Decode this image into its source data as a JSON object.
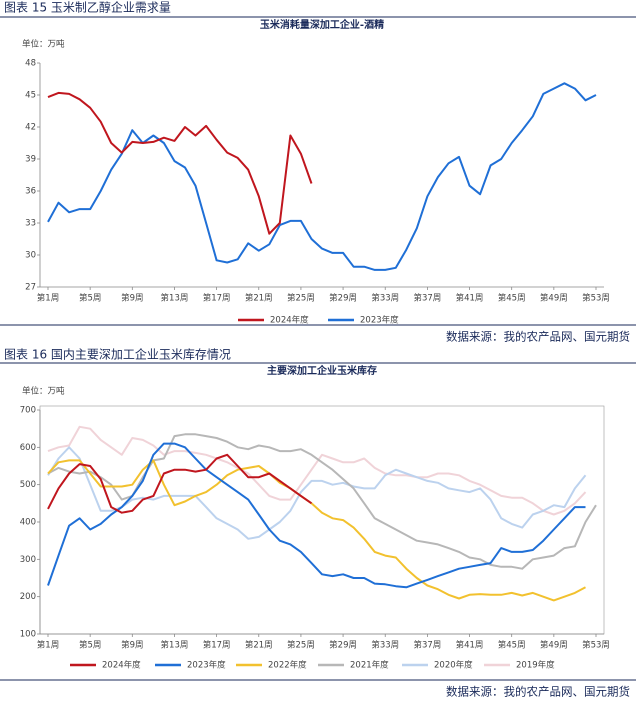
{
  "captions": [
    "图表 15  玉米制乙醇企业需求量",
    "图表 16  国内主要深加工企业玉米库存情况"
  ],
  "sources": [
    "数据来源：我的农产品网、国元期货",
    "数据来源：我的农产品网、国元期货"
  ],
  "chart_data": [
    {
      "type": "line",
      "title": "玉米消耗量深加工企业-酒精",
      "ylabel": "单位：万吨",
      "x": [
        1,
        2,
        3,
        4,
        5,
        6,
        7,
        8,
        9,
        10,
        11,
        12,
        13,
        14,
        15,
        16,
        17,
        18,
        19,
        20,
        21,
        22,
        23,
        24,
        25,
        26,
        27,
        28,
        29,
        30,
        31,
        32,
        33,
        34,
        35,
        36,
        37,
        38,
        39,
        40,
        41,
        42,
        43,
        44,
        45,
        46,
        47,
        48,
        49,
        50,
        51,
        52,
        53
      ],
      "xlim": [
        1,
        53
      ],
      "xticks": [
        {
          "value": 1,
          "label": "第1周"
        },
        {
          "value": 5,
          "label": "第5周"
        },
        {
          "value": 9,
          "label": "第9周"
        },
        {
          "value": 13,
          "label": "第13周"
        },
        {
          "value": 17,
          "label": "第17周"
        },
        {
          "value": 21,
          "label": "第21周"
        },
        {
          "value": 25,
          "label": "第25周"
        },
        {
          "value": 29,
          "label": "第29周"
        },
        {
          "value": 33,
          "label": "第33周"
        },
        {
          "value": 37,
          "label": "第37周"
        },
        {
          "value": 41,
          "label": "第41周"
        },
        {
          "value": 45,
          "label": "第45周"
        },
        {
          "value": 49,
          "label": "第49周"
        },
        {
          "value": 53,
          "label": "第53周"
        }
      ],
      "ylim": [
        27,
        48
      ],
      "yticks": [
        27,
        30,
        33,
        36,
        39,
        42,
        45,
        48
      ],
      "grid": false,
      "series": [
        {
          "name": "2024年度",
          "color": "#c0161e",
          "values": [
            44.8,
            45.2,
            45.1,
            44.6,
            43.8,
            42.5,
            40.5,
            39.6,
            40.6,
            40.5,
            40.6,
            41.0,
            40.7,
            42.0,
            41.2,
            42.1,
            40.8,
            39.6,
            39.1,
            38.0,
            35.5,
            32.0,
            33.0,
            41.2,
            39.5,
            36.7,
            null,
            null,
            null,
            null,
            null,
            null,
            null,
            null,
            null,
            null,
            null,
            null,
            null,
            null,
            null,
            null,
            null,
            null,
            null,
            null,
            null,
            null,
            null,
            null,
            null,
            null,
            null
          ]
        },
        {
          "name": "2023年度",
          "color": "#1f6fd6",
          "values": [
            33.1,
            34.9,
            34.0,
            34.3,
            34.3,
            36.0,
            38.0,
            39.5,
            41.7,
            40.5,
            41.2,
            40.5,
            38.8,
            38.2,
            36.5,
            33.0,
            29.5,
            29.3,
            29.6,
            31.1,
            30.4,
            31.0,
            32.8,
            33.2,
            33.2,
            31.5,
            30.6,
            30.2,
            30.2,
            28.9,
            28.9,
            28.6,
            28.6,
            28.8,
            30.5,
            32.5,
            35.5,
            37.3,
            38.6,
            39.2,
            36.5,
            35.7,
            38.4,
            39.0,
            40.5,
            41.7,
            43.0,
            45.1,
            45.6,
            46.1,
            45.6,
            44.5,
            45.0
          ]
        }
      ]
    },
    {
      "type": "line",
      "title": "主要深加工企业玉米库存",
      "ylabel": "单位：万吨",
      "x": [
        1,
        2,
        3,
        4,
        5,
        6,
        7,
        8,
        9,
        10,
        11,
        12,
        13,
        14,
        15,
        16,
        17,
        18,
        19,
        20,
        21,
        22,
        23,
        24,
        25,
        26,
        27,
        28,
        29,
        30,
        31,
        32,
        33,
        34,
        35,
        36,
        37,
        38,
        39,
        40,
        41,
        42,
        43,
        44,
        45,
        46,
        47,
        48,
        49,
        50,
        51,
        52,
        53
      ],
      "xlim": [
        1,
        53
      ],
      "xticks": [
        {
          "value": 1,
          "label": "第1周"
        },
        {
          "value": 5,
          "label": "第5周"
        },
        {
          "value": 9,
          "label": "第9周"
        },
        {
          "value": 13,
          "label": "第13周"
        },
        {
          "value": 17,
          "label": "第17周"
        },
        {
          "value": 21,
          "label": "第21周"
        },
        {
          "value": 25,
          "label": "第25周"
        },
        {
          "value": 29,
          "label": "第29周"
        },
        {
          "value": 33,
          "label": "第33周"
        },
        {
          "value": 37,
          "label": "第37周"
        },
        {
          "value": 41,
          "label": "第41周"
        },
        {
          "value": 45,
          "label": "第45周"
        },
        {
          "value": 49,
          "label": "第49周"
        },
        {
          "value": 53,
          "label": "第53周"
        }
      ],
      "ylim": [
        100,
        700
      ],
      "yticks": [
        100,
        200,
        300,
        400,
        500,
        600,
        700
      ],
      "grid": false,
      "series": [
        {
          "name": "2024年度",
          "color": "#c0161e",
          "values": [
            435,
            490,
            530,
            555,
            550,
            515,
            440,
            425,
            430,
            460,
            470,
            530,
            540,
            540,
            535,
            540,
            570,
            580,
            550,
            520,
            520,
            530,
            510,
            490,
            470,
            450,
            null,
            null,
            null,
            null,
            null,
            null,
            null,
            null,
            null,
            null,
            null,
            null,
            null,
            null,
            null,
            null,
            null,
            null,
            null,
            null,
            null,
            null,
            null,
            null,
            null,
            null,
            null
          ]
        },
        {
          "name": "2023年度",
          "color": "#1f6fd6",
          "values": [
            230,
            310,
            390,
            410,
            380,
            395,
            420,
            440,
            470,
            510,
            580,
            610,
            610,
            600,
            570,
            540,
            520,
            500,
            480,
            460,
            420,
            380,
            350,
            340,
            320,
            290,
            260,
            255,
            260,
            250,
            250,
            235,
            233,
            228,
            225,
            235,
            245,
            255,
            265,
            275,
            280,
            285,
            290,
            330,
            320,
            320,
            325,
            350,
            380,
            410,
            440,
            440,
            null
          ]
        },
        {
          "name": "2022年度",
          "color": "#f2c12e",
          "values": [
            530,
            560,
            565,
            565,
            530,
            495,
            495,
            495,
            500,
            540,
            565,
            500,
            445,
            455,
            470,
            480,
            500,
            525,
            540,
            545,
            550,
            530,
            505,
            490,
            470,
            450,
            425,
            410,
            405,
            385,
            355,
            320,
            310,
            305,
            275,
            250,
            230,
            220,
            205,
            195,
            205,
            207,
            205,
            205,
            210,
            203,
            210,
            200,
            190,
            200,
            210,
            225,
            null
          ]
        },
        {
          "name": "2021年度",
          "color": "#b7b7b7",
          "values": [
            530,
            545,
            535,
            530,
            535,
            520,
            500,
            460,
            470,
            520,
            565,
            570,
            630,
            635,
            635,
            630,
            625,
            615,
            600,
            595,
            605,
            600,
            590,
            590,
            595,
            580,
            560,
            540,
            515,
            490,
            450,
            410,
            395,
            380,
            365,
            350,
            345,
            340,
            330,
            320,
            305,
            300,
            285,
            280,
            280,
            275,
            300,
            305,
            310,
            330,
            335,
            400,
            445
          ]
        },
        {
          "name": "2020年度",
          "color": "#bcd2ee",
          "values": [
            525,
            570,
            600,
            570,
            500,
            430,
            430,
            440,
            460,
            465,
            460,
            470,
            470,
            470,
            470,
            440,
            410,
            395,
            380,
            355,
            360,
            380,
            400,
            430,
            480,
            510,
            510,
            500,
            505,
            495,
            490,
            490,
            525,
            540,
            530,
            520,
            510,
            505,
            490,
            485,
            480,
            490,
            460,
            410,
            395,
            385,
            420,
            430,
            445,
            440,
            490,
            525,
            null
          ]
        },
        {
          "name": "2019年度",
          "color": "#f0d3d8",
          "values": [
            590,
            600,
            605,
            655,
            650,
            620,
            600,
            580,
            625,
            620,
            605,
            580,
            590,
            590,
            585,
            580,
            570,
            560,
            545,
            530,
            500,
            470,
            460,
            460,
            500,
            540,
            580,
            570,
            560,
            560,
            570,
            545,
            530,
            525,
            525,
            520,
            520,
            530,
            530,
            525,
            510,
            500,
            485,
            470,
            465,
            465,
            450,
            430,
            420,
            430,
            450,
            480,
            null
          ]
        }
      ]
    }
  ]
}
